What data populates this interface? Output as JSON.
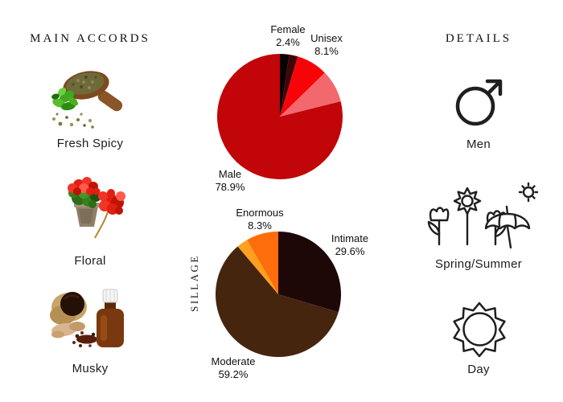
{
  "left_column": {
    "header": "MAIN ACCORDS",
    "accords": [
      {
        "label": "Fresh Spicy",
        "image": "herbs-wooden-scoop-photo"
      },
      {
        "label": "Floral",
        "image": "red-geraniums-pot-photo"
      },
      {
        "label": "Musky",
        "image": "musk-pod-amber-bottle-photo"
      }
    ]
  },
  "center_column": {
    "sillage_axis_label": "SILLAGE"
  },
  "right_column": {
    "header": "DETAILS",
    "details": [
      {
        "label": "Men",
        "icon": "mars-male-icon"
      },
      {
        "label": "Spring/Summer",
        "icon": "flowers-umbrella-sun-icon"
      },
      {
        "label": "Day",
        "icon": "sun-outline-icon"
      }
    ]
  },
  "chart_data": [
    {
      "type": "pie",
      "name": "gender-votes",
      "legend_position": "callout-labels",
      "slices": [
        {
          "label": "Female",
          "pct_text": "2.4%",
          "value": 2.4,
          "color": "#0b0204",
          "labeled": true
        },
        {
          "label": "",
          "pct_text": "",
          "value": 2.2,
          "color": "#400509",
          "labeled": false
        },
        {
          "label": "Unisex",
          "pct_text": "8.1%",
          "value": 8.1,
          "color": "#f70409",
          "labeled": true
        },
        {
          "label": "",
          "pct_text": "",
          "value": 8.4,
          "color": "#f2686c",
          "labeled": false
        },
        {
          "label": "Male",
          "pct_text": "78.9%",
          "value": 78.9,
          "color": "#c10509",
          "labeled": true
        }
      ]
    },
    {
      "type": "pie",
      "name": "sillage-votes",
      "axis_label": "SILLAGE",
      "legend_position": "callout-labels",
      "slices": [
        {
          "label": "Intimate",
          "pct_text": "29.6%",
          "value": 29.6,
          "color": "#1e0707",
          "labeled": true
        },
        {
          "label": "Moderate",
          "pct_text": "59.2%",
          "value": 59.2,
          "color": "#46250f",
          "labeled": true
        },
        {
          "label": "",
          "pct_text": "",
          "value": 2.9,
          "color": "#ffa01e",
          "labeled": false
        },
        {
          "label": "Enormous",
          "pct_text": "8.3%",
          "value": 8.3,
          "color": "#fe6d0c",
          "labeled": true
        }
      ]
    }
  ]
}
